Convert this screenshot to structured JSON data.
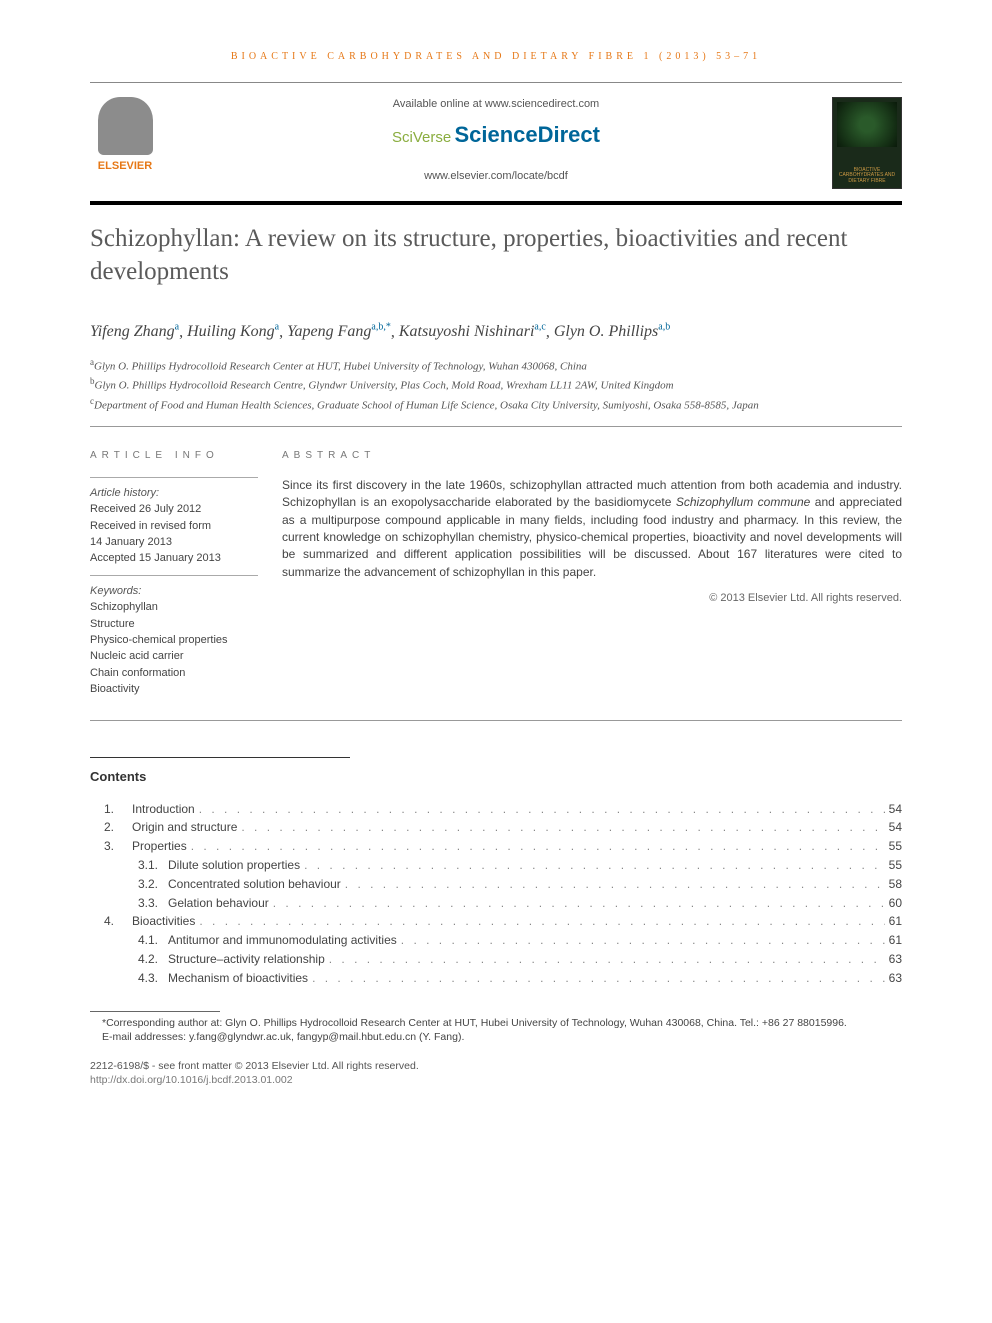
{
  "journal_header": "Bioactive Carbohydrates and Dietary Fibre 1 (2013) 53–71",
  "available_online": "Available online at www.sciencedirect.com",
  "sciverse_top": "SciVerse",
  "sciverse_main": "ScienceDirect",
  "journal_url": "www.elsevier.com/locate/bcdf",
  "elsevier_label": "ELSEVIER",
  "cover_text": "BIOACTIVE CARBOHYDRATES AND DIETARY FIBRE",
  "title": "Schizophyllan: A review on its structure, properties, bioactivities and recent developments",
  "authors": [
    {
      "name": "Yifeng Zhang",
      "aff": "a"
    },
    {
      "name": "Huiling Kong",
      "aff": "a"
    },
    {
      "name": "Yapeng Fang",
      "aff": "a,b,",
      "corr": "*"
    },
    {
      "name": "Katsuyoshi Nishinari",
      "aff": "a,c"
    },
    {
      "name": "Glyn O. Phillips",
      "aff": "a,b"
    }
  ],
  "affiliations": [
    {
      "key": "a",
      "text": "Glyn O. Phillips Hydrocolloid Research Center at HUT, Hubei University of Technology, Wuhan 430068, China"
    },
    {
      "key": "b",
      "text": "Glyn O. Phillips Hydrocolloid Research Centre, Glyndwr University, Plas Coch, Mold Road, Wrexham LL11 2AW, United Kingdom"
    },
    {
      "key": "c",
      "text": "Department of Food and Human Health Sciences, Graduate School of Human Life Science, Osaka City University, Sumiyoshi, Osaka 558-8585, Japan"
    }
  ],
  "info_heading": "article info",
  "abstract_heading": "abstract",
  "history_label": "Article history:",
  "history": [
    "Received 26 July 2012",
    "Received in revised form",
    "14 January 2013",
    "Accepted 15 January 2013"
  ],
  "keywords_label": "Keywords:",
  "keywords": [
    "Schizophyllan",
    "Structure",
    "Physico-chemical properties",
    "Nucleic acid carrier",
    "Chain conformation",
    "Bioactivity"
  ],
  "abstract_pre": "Since its first discovery in the late 1960s, schizophyllan attracted much attention from both academia and industry. Schizophyllan is an exopolysaccharide elaborated by the basidiomycete ",
  "abstract_italic": "Schizophyllum commune",
  "abstract_post": " and appreciated as a multipurpose compound applicable in many fields, including food industry and pharmacy. In this review, the current knowledge on schizophyllan chemistry, physico-chemical properties, bioactivity and novel developments will be summarized and different application possibilities will be discussed. About 167 literatures were cited to summarize the advancement of schizophyllan in this paper.",
  "copyright": "© 2013 Elsevier Ltd. All rights reserved.",
  "contents_title": "Contents",
  "toc": [
    {
      "level": 1,
      "num": "1.",
      "label": "Introduction",
      "page": "54"
    },
    {
      "level": 1,
      "num": "2.",
      "label": "Origin and structure",
      "page": "54"
    },
    {
      "level": 1,
      "num": "3.",
      "label": "Properties",
      "page": "55"
    },
    {
      "level": 2,
      "num": "3.1.",
      "label": "Dilute solution properties",
      "page": "55"
    },
    {
      "level": 2,
      "num": "3.2.",
      "label": "Concentrated solution behaviour",
      "page": "58"
    },
    {
      "level": 2,
      "num": "3.3.",
      "label": "Gelation behaviour",
      "page": "60"
    },
    {
      "level": 1,
      "num": "4.",
      "label": "Bioactivities",
      "page": "61"
    },
    {
      "level": 2,
      "num": "4.1.",
      "label": "Antitumor and immunomodulating activities",
      "page": "61"
    },
    {
      "level": 2,
      "num": "4.2.",
      "label": "Structure–activity relationship",
      "page": "63"
    },
    {
      "level": 2,
      "num": "4.3.",
      "label": "Mechanism of bioactivities",
      "page": "63"
    }
  ],
  "corr_note": "*Corresponding author at: Glyn O. Phillips Hydrocolloid Research Center at HUT, Hubei University of Technology, Wuhan 430068, China. Tel.: +86 27 88015996.",
  "email_label": "E-mail addresses:",
  "emails": " y.fang@glyndwr.ac.uk, fangyp@mail.hbut.edu.cn (Y. Fang).",
  "issn_line": "2212-6198/$ - see front matter © 2013 Elsevier Ltd. All rights reserved.",
  "doi": "http://dx.doi.org/10.1016/j.bcdf.2013.01.002",
  "colors": {
    "accent_orange": "#e67817",
    "link_blue": "#006699",
    "sciverse_green": "#8aad3f",
    "text": "#333333",
    "muted": "#777777"
  }
}
